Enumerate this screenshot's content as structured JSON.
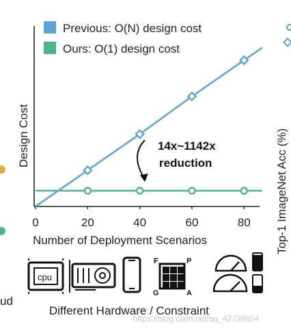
{
  "chart_data": {
    "type": "line",
    "xlabel": "Number of Deployment Scenarios",
    "ylabel": "Design Cost",
    "x_ticks": [
      0,
      20,
      40,
      60,
      80
    ],
    "xlim": [
      0,
      87
    ],
    "ylim": [
      0,
      100
    ],
    "grid": false,
    "legend_position": "top-left",
    "series": [
      {
        "name": "Previous: O(N) design cost",
        "color": "#5aa6d6",
        "x": [
          0,
          20,
          40,
          60,
          80,
          87
        ],
        "y": [
          0,
          23,
          46,
          70,
          93,
          101
        ]
      },
      {
        "name": "Ours: O(1) design cost",
        "color": "#49b58c",
        "x": [
          0,
          20,
          40,
          60,
          80,
          87
        ],
        "y": [
          10,
          10,
          10,
          10,
          10,
          10
        ]
      }
    ],
    "markers_x": [
      20,
      40,
      60,
      80
    ],
    "annotation": {
      "line1": "14x~1142x",
      "line2": "reduction"
    }
  },
  "hardware": {
    "caption": "Different Hardware / Constraint",
    "cpu_label": "cpu",
    "fpga_letters": [
      "F",
      "P",
      "G",
      "A"
    ]
  },
  "right_panel": {
    "ylabel": "Top-1 ImageNet Acc (%)"
  },
  "left_fragment": {
    "text": "ud"
  },
  "watermark": "https://blog.csdn.net/qq_42738654"
}
